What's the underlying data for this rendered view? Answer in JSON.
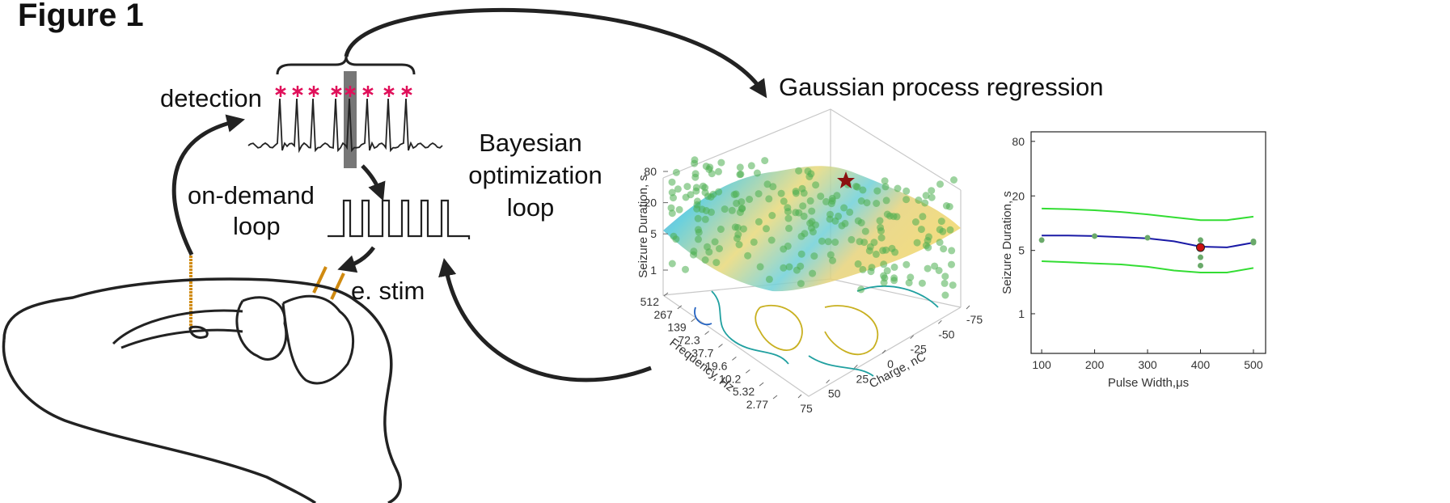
{
  "figure": {
    "title": "Figure 1",
    "labels": {
      "detection": "detection",
      "on_demand": [
        "on-demand",
        "loop"
      ],
      "bayesian": [
        "Bayesian",
        "optimization",
        "loop"
      ],
      "stim": "e. stim",
      "gpr": "Gaussian process regression"
    }
  },
  "chart_data": [
    {
      "type": "surface3d",
      "xlabel": "Charge, nC",
      "ylabel": "Frequency, Hz",
      "zlabel": "Seizure Duration, s",
      "xlim": [
        75,
        -75
      ],
      "xticks": [
        75,
        50,
        25,
        0,
        -25,
        -50,
        -75
      ],
      "ylim": [
        512,
        2.77
      ],
      "yticks": [
        512,
        267,
        139,
        72.3,
        37.7,
        19.6,
        10.2,
        5.32,
        2.77
      ],
      "ylog": true,
      "zlim": [
        1,
        80
      ],
      "zticks": [
        1,
        5,
        20,
        80
      ],
      "zlog": true
    },
    {
      "type": "line",
      "xlabel": "Pulse Width,μs",
      "ylabel": "Seizure Duration, s",
      "x": [
        100,
        150,
        200,
        250,
        300,
        350,
        400,
        450,
        500
      ],
      "series": [
        {
          "color": "#33dd33",
          "values": [
            14.5,
            14.3,
            13.9,
            13.3,
            12.5,
            11.6,
            10.8,
            10.8,
            11.8
          ]
        },
        {
          "color": "#1a1aa6",
          "values": [
            7.3,
            7.3,
            7.2,
            7.0,
            6.8,
            6.3,
            5.5,
            5.4,
            6.1
          ]
        },
        {
          "color": "#33dd33",
          "values": [
            3.8,
            3.7,
            3.6,
            3.5,
            3.3,
            3.0,
            2.85,
            2.85,
            3.2
          ]
        }
      ],
      "points": {
        "color": "#6aaa6a",
        "x": [
          100,
          200,
          300,
          400,
          400,
          400,
          500,
          500
        ],
        "values": [
          6.5,
          7.2,
          6.9,
          6.5,
          4.2,
          3.4,
          6.3,
          6.1
        ]
      },
      "best": {
        "color": "#cc1111",
        "x": 400,
        "value": 5.4
      },
      "xlim": [
        80,
        523
      ],
      "xticks": [
        100,
        200,
        300,
        400,
        500
      ],
      "ylim": [
        0.365,
        102
      ],
      "yticks": [
        1,
        5,
        20,
        80
      ],
      "ylog": true
    }
  ]
}
